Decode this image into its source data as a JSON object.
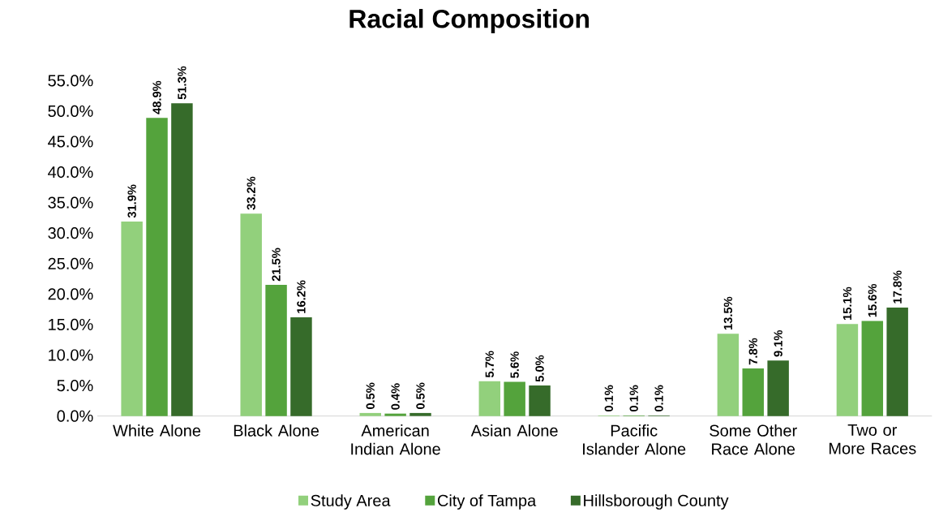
{
  "chart_data": {
    "type": "bar",
    "title": "Racial Composition",
    "categories": [
      "White Alone",
      "Black Alone",
      "American Indian Alone",
      "Asian Alone",
      "Pacific Islander Alone",
      "Some Other Race Alone",
      "Two or More Races"
    ],
    "series": [
      {
        "name": "Study Area",
        "color": "#92d07c",
        "values": [
          31.9,
          33.2,
          0.5,
          5.7,
          0.1,
          13.5,
          15.1
        ],
        "value_labels": [
          "31.9%",
          "33.2%",
          "0.5%",
          "5.7%",
          "0.1%",
          "13.5%",
          "15.1%"
        ]
      },
      {
        "name": "City of Tampa",
        "color": "#54a33c",
        "values": [
          48.9,
          21.5,
          0.4,
          5.6,
          0.1,
          7.8,
          15.6
        ],
        "value_labels": [
          "48.9%",
          "21.5%",
          "0.4%",
          "5.6%",
          "0.1%",
          "7.8%",
          "15.6%"
        ]
      },
      {
        "name": "Hillsborough County",
        "color": "#366b2a",
        "values": [
          51.3,
          16.2,
          0.5,
          5.0,
          0.1,
          9.1,
          17.8
        ],
        "value_labels": [
          "51.3%",
          "16.2%",
          "0.5%",
          "5.0%",
          "0.1%",
          "9.1%",
          "17.8%"
        ]
      }
    ],
    "ylim": [
      0,
      55
    ],
    "yticks": [
      {
        "value": 0,
        "label": "0.0%"
      },
      {
        "value": 5,
        "label": "5.0%"
      },
      {
        "value": 10,
        "label": "10.0%"
      },
      {
        "value": 15,
        "label": "15.0%"
      },
      {
        "value": 20,
        "label": "20.0%"
      },
      {
        "value": 25,
        "label": "25.0%"
      },
      {
        "value": 30,
        "label": "30.0%"
      },
      {
        "value": 35,
        "label": "35.0%"
      },
      {
        "value": 40,
        "label": "40.0%"
      },
      {
        "value": 45,
        "label": "45.0%"
      },
      {
        "value": 50,
        "label": "50.0%"
      },
      {
        "value": 55,
        "label": "55.0%"
      }
    ],
    "grid": false,
    "legend": "bottom"
  }
}
